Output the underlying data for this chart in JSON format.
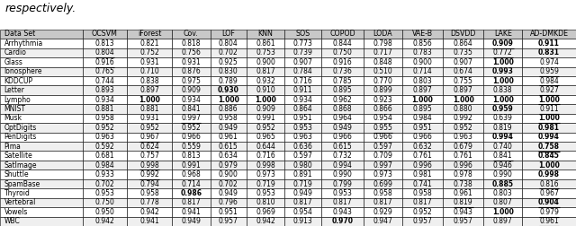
{
  "title": "respectively.",
  "columns": [
    "Data Set",
    "OCSVM",
    "iForest",
    "Cov.",
    "LOF",
    "KNN",
    "SOS",
    "COPOD",
    "LODA",
    "VAE-B",
    "DSVDD",
    "LAKE",
    "AD-DMKDE"
  ],
  "rows": [
    [
      "Arrhythmia",
      "0.813",
      "0.821",
      "0.818",
      "0.804",
      "0.861",
      "0.773",
      "0.844",
      "0.798",
      "0.856",
      "0.864",
      "0.909",
      "0.911"
    ],
    [
      "Cardio",
      "0.804",
      "0.752",
      "0.756",
      "0.702",
      "0.753",
      "0.739",
      "0.750",
      "0.717",
      "0.783",
      "0.735",
      "0.772",
      "0.831"
    ],
    [
      "Glass",
      "0.916",
      "0.931",
      "0.931",
      "0.925",
      "0.900",
      "0.907",
      "0.916",
      "0.848",
      "0.900",
      "0.907",
      "1.000",
      "0.974"
    ],
    [
      "Ionosphere",
      "0.765",
      "0.710",
      "0.876",
      "0.830",
      "0.817",
      "0.784",
      "0.736",
      "0.510",
      "0.714",
      "0.674",
      "0.993",
      "0.959"
    ],
    [
      "KDDCUP",
      "0.744",
      "0.838",
      "0.975",
      "0.789",
      "0.932",
      "0.716",
      "0.785",
      "0.770",
      "0.803",
      "0.755",
      "1.000",
      "0.984"
    ],
    [
      "Letter",
      "0.893",
      "0.897",
      "0.909",
      "0.930",
      "0.910",
      "0.911",
      "0.895",
      "0.899",
      "0.897",
      "0.897",
      "0.838",
      "0.927"
    ],
    [
      "Lympho",
      "0.934",
      "1.000",
      "0.934",
      "1.000",
      "1.000",
      "0.934",
      "0.962",
      "0.923",
      "1.000",
      "1.000",
      "1.000",
      "1.000"
    ],
    [
      "MNIST",
      "0.881",
      "0.881",
      "0.841",
      "0.886",
      "0.909",
      "0.864",
      "0.868",
      "0.866",
      "0.895",
      "0.880",
      "0.959",
      "0.911"
    ],
    [
      "Musk",
      "0.958",
      "0.931",
      "0.997",
      "0.958",
      "0.991",
      "0.951",
      "0.964",
      "0.954",
      "0.984",
      "0.992",
      "0.639",
      "1.000"
    ],
    [
      "OptDigits",
      "0.952",
      "0.952",
      "0.952",
      "0.949",
      "0.952",
      "0.953",
      "0.949",
      "0.955",
      "0.951",
      "0.952",
      "0.819",
      "0.981"
    ],
    [
      "PenDigits",
      "0.963",
      "0.967",
      "0.966",
      "0.961",
      "0.965",
      "0.963",
      "0.966",
      "0.966",
      "0.966",
      "0.963",
      "0.994",
      "0.994"
    ],
    [
      "Pima",
      "0.592",
      "0.624",
      "0.559",
      "0.615",
      "0.644",
      "0.636",
      "0.615",
      "0.597",
      "0.632",
      "0.679",
      "0.740",
      "0.758"
    ],
    [
      "Satellite",
      "0.681",
      "0.757",
      "0.813",
      "0.634",
      "0.716",
      "0.597",
      "0.732",
      "0.709",
      "0.761",
      "0.761",
      "0.841",
      "0.845"
    ],
    [
      "SatImage",
      "0.984",
      "0.998",
      "0.991",
      "0.979",
      "0.998",
      "0.980",
      "0.994",
      "0.997",
      "0.996",
      "0.996",
      "0.946",
      "1.000"
    ],
    [
      "Shuttle",
      "0.933",
      "0.992",
      "0.968",
      "0.900",
      "0.973",
      "0.891",
      "0.990",
      "0.973",
      "0.981",
      "0.978",
      "0.990",
      "0.998"
    ],
    [
      "SpamBase",
      "0.702",
      "0.794",
      "0.714",
      "0.702",
      "0.719",
      "0.719",
      "0.799",
      "0.699",
      "0.741",
      "0.738",
      "0.885",
      "0.816"
    ],
    [
      "Thyroid",
      "0.953",
      "0.958",
      "0.986",
      "0.949",
      "0.953",
      "0.949",
      "0.953",
      "0.958",
      "0.958",
      "0.961",
      "0.803",
      "0.967"
    ],
    [
      "Vertebral",
      "0.750",
      "0.778",
      "0.817",
      "0.796",
      "0.810",
      "0.817",
      "0.817",
      "0.817",
      "0.817",
      "0.819",
      "0.807",
      "0.904"
    ],
    [
      "Vowels",
      "0.950",
      "0.942",
      "0.941",
      "0.951",
      "0.969",
      "0.954",
      "0.943",
      "0.929",
      "0.952",
      "0.943",
      "1.000",
      "0.979"
    ],
    [
      "WBC",
      "0.942",
      "0.941",
      "0.949",
      "0.957",
      "0.942",
      "0.913",
      "0.970",
      "0.947",
      "0.957",
      "0.957",
      "0.897",
      "0.961"
    ]
  ],
  "bold_cells": {
    "Arrhythmia": [
      11,
      12
    ],
    "Cardio": [
      12
    ],
    "Glass": [
      11
    ],
    "Ionosphere": [
      11
    ],
    "KDDCUP": [
      11
    ],
    "Letter": [
      4
    ],
    "Lympho": [
      2,
      4,
      5,
      9,
      10,
      11,
      12
    ],
    "MNIST": [
      11
    ],
    "Musk": [
      12
    ],
    "OptDigits": [
      12
    ],
    "PenDigits": [
      11,
      12
    ],
    "Pima": [
      12
    ],
    "Satellite": [
      12
    ],
    "SatImage": [
      12
    ],
    "Shuttle": [
      12
    ],
    "SpamBase": [
      11
    ],
    "Thyroid": [
      3
    ],
    "Vertebral": [
      12
    ],
    "Vowels": [
      11
    ],
    "WBC": [
      7
    ]
  },
  "underline_cells": {
    "Arrhythmia": [
      11
    ],
    "Cardio": [
      1,
      11
    ],
    "Glass": [
      1
    ],
    "Ionosphere": [
      12
    ],
    "KDDCUP": [
      12
    ],
    "Letter": [
      12
    ],
    "Lympho": [
      12
    ],
    "MNIST": [
      12
    ],
    "Musk": [
      3,
      12
    ],
    "OptDigits": [
      8
    ],
    "PenDigits": [
      2
    ],
    "Pima": [
      12
    ],
    "Satellite": [
      11
    ],
    "SatImage": [
      2
    ],
    "Shuttle": [
      2
    ],
    "SpamBase": [
      12
    ],
    "Thyroid": [
      12
    ],
    "Vertebral": [
      10,
      12
    ],
    "Vowels": [
      12
    ],
    "WBC": [
      12
    ]
  },
  "header_bg": "#c8c8c8",
  "even_row_bg": "#ffffff",
  "odd_row_bg": "#efefef",
  "font_size": 5.5,
  "header_font_size": 5.7,
  "title_fontsize": 9.0,
  "title_fontstyle": "italic"
}
